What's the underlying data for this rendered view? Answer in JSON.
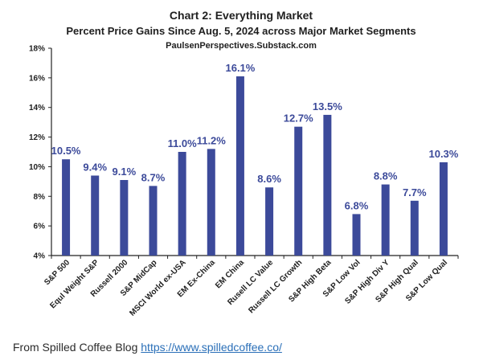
{
  "chart_data": {
    "type": "bar",
    "title": "Chart 2: Everything Market",
    "subtitle": "Percent Price Gains Since Aug. 5, 2024 across Major Market Segments",
    "source_line": "PaulsenPerspectives.Substack.com",
    "categories": [
      "S&P 500",
      "Equl Weight S&P",
      "Russell 2000",
      "S&P MidCap",
      "MSCI World ex-USA",
      "EM Ex-China",
      "EM China",
      "Rusell LC Value",
      "Russell LC Growth",
      "S&P High Beta",
      "S&P Low Vol",
      "S&P High Div Y",
      "S&P High Qual",
      "S&P Low Qual"
    ],
    "values": [
      10.5,
      9.4,
      9.1,
      8.7,
      11.0,
      11.2,
      16.1,
      8.6,
      12.7,
      13.5,
      6.8,
      8.8,
      7.7,
      10.3
    ],
    "data_labels": [
      "10.5%",
      "9.4%",
      "9.1%",
      "8.7%",
      "11.0%",
      "11.2%",
      "16.1%",
      "8.6%",
      "12.7%",
      "13.5%",
      "6.8%",
      "8.8%",
      "7.7%",
      "10.3%"
    ],
    "ylim": [
      4,
      18
    ],
    "yticks": [
      4,
      6,
      8,
      10,
      12,
      14,
      16,
      18
    ],
    "ytick_labels": [
      "4%",
      "6%",
      "8%",
      "10%",
      "12%",
      "14%",
      "16%",
      "18%"
    ],
    "xlabel": "",
    "ylabel": "",
    "grid": false,
    "legend": "none",
    "bar_color": "#3c4a9a",
    "label_color": "#3c4a9a"
  },
  "caption": {
    "text": "From Spilled Coffee Blog ",
    "link_text": "https://www.spilledcoffee.co/",
    "link_color": "#2a6fb8"
  }
}
